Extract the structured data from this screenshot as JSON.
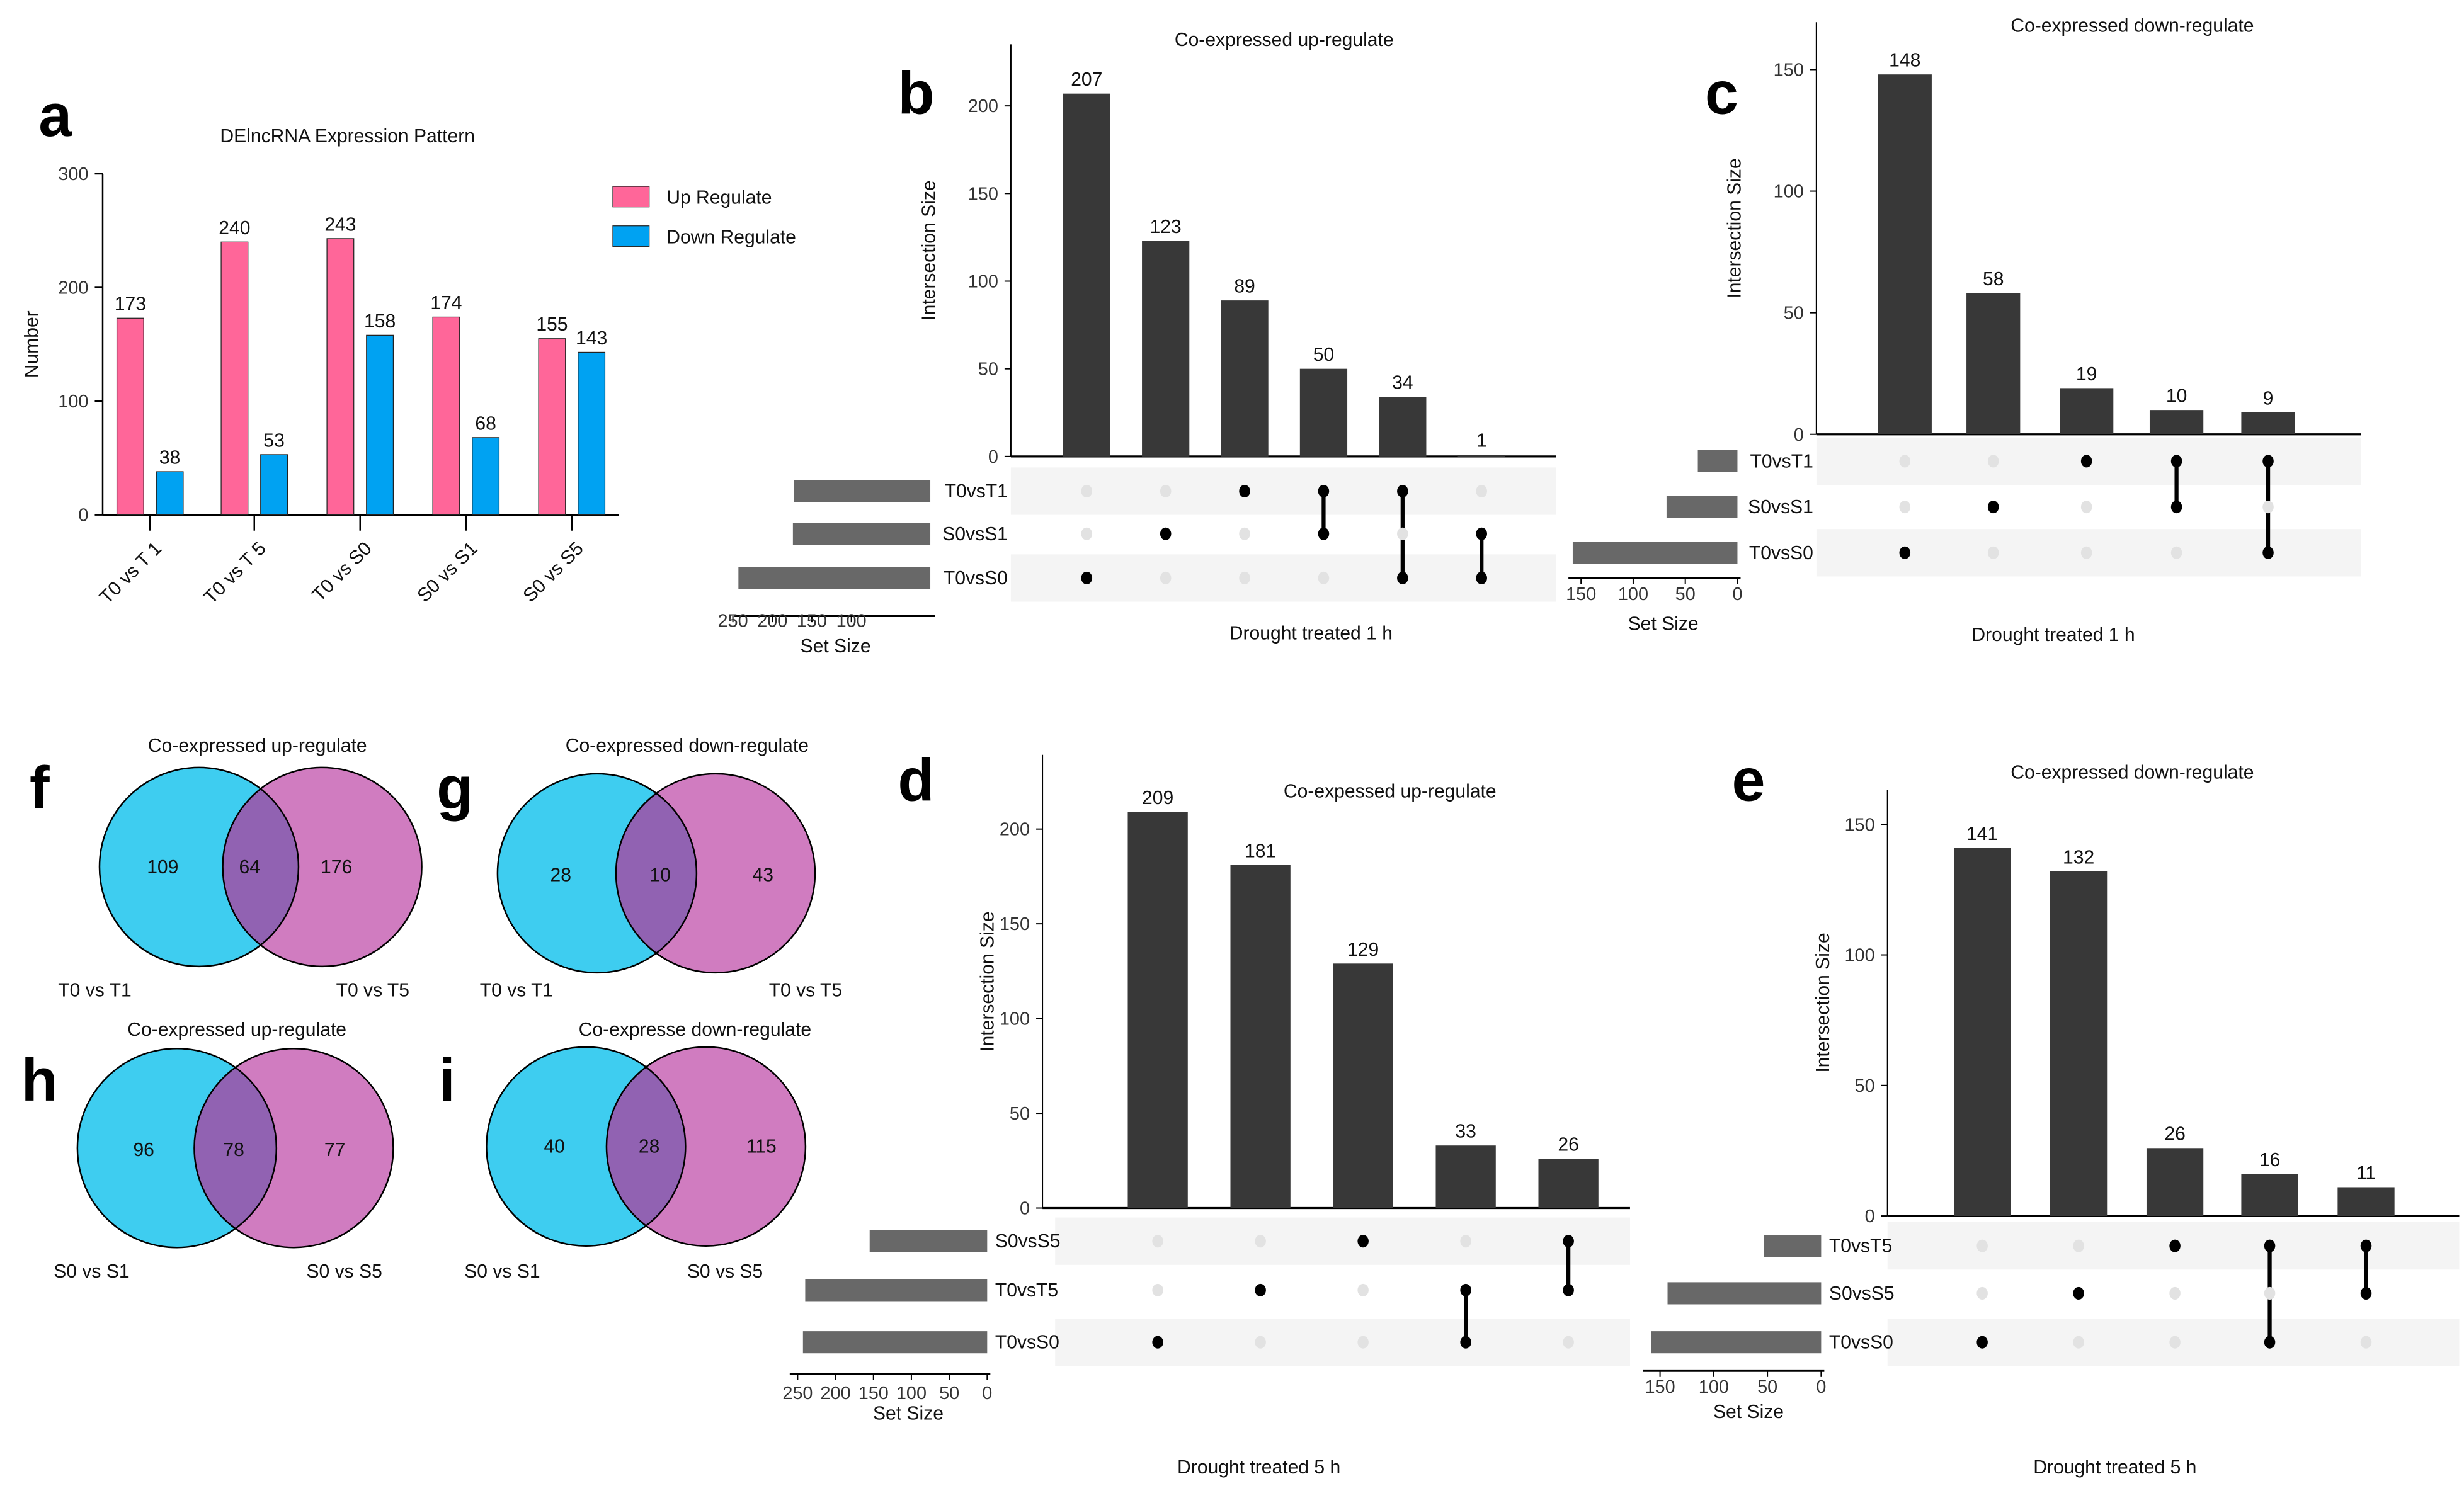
{
  "chart_data": [
    {
      "panel": "a",
      "type": "bar",
      "title": "DElncRNA Expression Pattern",
      "ylabel": "Number",
      "xlabel": "",
      "ylim": [
        0,
        300
      ],
      "y_ticks": [
        0,
        100,
        200,
        300
      ],
      "categories": [
        "T0  vs T 1",
        "T0  vs T 5",
        "T0  vs S0",
        "S0 vs S1",
        "S0 vs S5"
      ],
      "series": [
        {
          "name": "Up Regulate",
          "color": "#ff6699",
          "values": [
            173,
            240,
            243,
            174,
            155
          ]
        },
        {
          "name": "Down Regulate",
          "color": "#00a2f2",
          "values": [
            38,
            53,
            158,
            68,
            143
          ]
        }
      ],
      "legend": "top-right"
    },
    {
      "panel": "b",
      "type": "upset",
      "title": "Co-expressed up-regulate",
      "ylabel": "Intersection Size",
      "xlabel": "Drought treated 1 h",
      "set_size_label": "Set Size",
      "y_ticks": [
        0,
        50,
        100,
        150,
        200
      ],
      "set_ticks": [
        250,
        200,
        150,
        100
      ],
      "sets": [
        {
          "name": "T0vsT1",
          "size": 173
        },
        {
          "name": "S0vsS1",
          "size": 174
        },
        {
          "name": "T0vsS0",
          "size": 243
        }
      ],
      "intersections": [
        {
          "members": [
            "T0vsS0"
          ],
          "size": 207
        },
        {
          "members": [
            "S0vsS1"
          ],
          "size": 123
        },
        {
          "members": [
            "T0vsT1"
          ],
          "size": 89
        },
        {
          "members": [
            "T0vsT1",
            "S0vsS1"
          ],
          "size": 50
        },
        {
          "members": [
            "T0vsT1",
            "T0vsS0"
          ],
          "size": 34
        },
        {
          "members": [
            "S0vsS1",
            "T0vsS0"
          ],
          "size": 1
        }
      ]
    },
    {
      "panel": "c",
      "type": "upset",
      "title": "Co-expressed  down-regulate",
      "ylabel": "Intersection Size",
      "xlabel": "Drought treated 1 h",
      "set_size_label": "Set Size",
      "y_ticks": [
        0,
        50,
        100,
        150
      ],
      "set_ticks": [
        150,
        100,
        50,
        0
      ],
      "sets": [
        {
          "name": "T0vsT1",
          "size": 38
        },
        {
          "name": "S0vsS1",
          "size": 68
        },
        {
          "name": "T0vsS0",
          "size": 158
        }
      ],
      "intersections": [
        {
          "members": [
            "T0vsS0"
          ],
          "size": 148
        },
        {
          "members": [
            "S0vsS1"
          ],
          "size": 58
        },
        {
          "members": [
            "T0vsT1"
          ],
          "size": 19
        },
        {
          "members": [
            "T0vsT1",
            "S0vsS1"
          ],
          "size": 10
        },
        {
          "members": [
            "T0vsT1",
            "T0vsS0"
          ],
          "size": 9
        }
      ]
    },
    {
      "panel": "d",
      "type": "upset",
      "title": "Co-expessed up-regulate",
      "ylabel": "Intersection Size",
      "xlabel": "Drought treated 5 h",
      "set_size_label": "Set Size",
      "y_ticks": [
        0,
        50,
        100,
        150,
        200
      ],
      "set_ticks": [
        250,
        200,
        150,
        100,
        50,
        0
      ],
      "sets": [
        {
          "name": "S0vsS5",
          "size": 155
        },
        {
          "name": "T0vsT5",
          "size": 240
        },
        {
          "name": "T0vsS0",
          "size": 243
        }
      ],
      "intersections": [
        {
          "members": [
            "T0vsS0"
          ],
          "size": 209
        },
        {
          "members": [
            "T0vsT5"
          ],
          "size": 181
        },
        {
          "members": [
            "S0vsS5"
          ],
          "size": 129
        },
        {
          "members": [
            "T0vsT5",
            "T0vsS0"
          ],
          "size": 33
        },
        {
          "members": [
            "S0vsS5",
            "T0vsT5"
          ],
          "size": 26
        }
      ]
    },
    {
      "panel": "e",
      "type": "upset",
      "title": "Co-expressed down-regulate",
      "ylabel": "Intersection Size",
      "xlabel": "Drought treated 5 h",
      "set_size_label": "Set Size",
      "y_ticks": [
        0,
        50,
        100,
        150
      ],
      "set_ticks": [
        150,
        100,
        50,
        0
      ],
      "sets": [
        {
          "name": "T0vsT5",
          "size": 53
        },
        {
          "name": "S0vsS5",
          "size": 143
        },
        {
          "name": "T0vsS0",
          "size": 158
        }
      ],
      "intersections": [
        {
          "members": [
            "T0vsS0"
          ],
          "size": 141
        },
        {
          "members": [
            "S0vsS5"
          ],
          "size": 132
        },
        {
          "members": [
            "T0vsT5"
          ],
          "size": 26
        },
        {
          "members": [
            "T0vsT5",
            "T0vsS0"
          ],
          "size": 16
        },
        {
          "members": [
            "T0vsT5",
            "S0vsS5"
          ],
          "size": 11
        }
      ]
    },
    {
      "panel": "f",
      "type": "venn",
      "title": "Co-expressed up-regulate",
      "sets": [
        "T0 vs T1",
        "T0 vs T5"
      ],
      "values": {
        "left_only": 109,
        "both": 64,
        "right_only": 176
      }
    },
    {
      "panel": "g",
      "type": "venn",
      "title": "Co-expressed down-regulate",
      "sets": [
        "T0 vs T1",
        "T0 vs T5"
      ],
      "values": {
        "left_only": 28,
        "both": 10,
        "right_only": 43
      }
    },
    {
      "panel": "h",
      "type": "venn",
      "title": "Co-expressed up-regulate",
      "sets": [
        "S0 vs S1",
        "S0 vs S5"
      ],
      "values": {
        "left_only": 96,
        "both": 78,
        "right_only": 77
      }
    },
    {
      "panel": "i",
      "type": "venn",
      "title": "Co-expresse down-regulate",
      "sets": [
        "S0 vs S1",
        "S0 vs S5"
      ],
      "values": {
        "left_only": 40,
        "both": 28,
        "right_only": 115
      }
    }
  ],
  "colors": {
    "bar": "#383838",
    "set_bar": "#686868",
    "dot_on": "#000000",
    "dot_off": "#e2e2e2",
    "venn_left": "#3ecdf0",
    "venn_right": "#d07cc0",
    "venn_overlap": "#9162b2",
    "row_shade": "#f4f4f4"
  }
}
